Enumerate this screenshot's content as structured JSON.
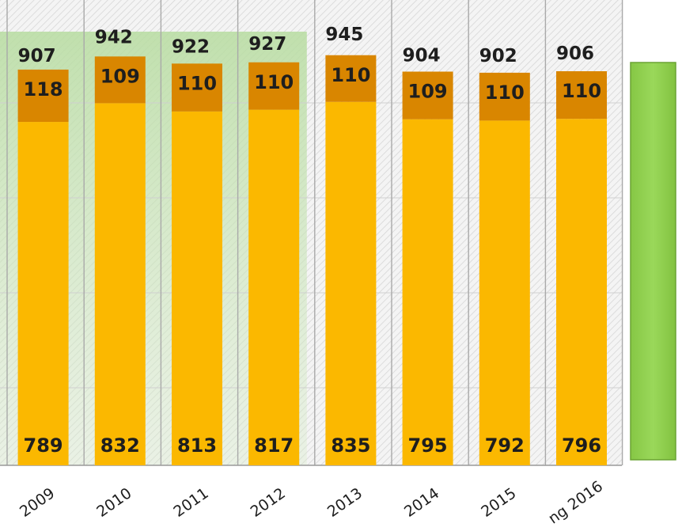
{
  "chart_data": {
    "type": "bar",
    "stacked": true,
    "categories": [
      "2009",
      "2010",
      "2011",
      "2012",
      "2013",
      "2014",
      "2015",
      "2016"
    ],
    "category_labels": [
      "2009",
      "2010",
      "2011",
      "2012",
      "2013",
      "2014",
      "2015",
      "ng 2016"
    ],
    "series": [
      {
        "values": [
          789,
          832,
          813,
          817,
          835,
          795,
          792,
          796
        ],
        "color": "#fbb800"
      },
      {
        "values": [
          118,
          109,
          110,
          110,
          110,
          109,
          110,
          110
        ],
        "color": "#d98600"
      }
    ],
    "totals": [
      907,
      942,
      922,
      927,
      945,
      904,
      902,
      906
    ],
    "grid": true,
    "highlight_band": {
      "from": "2009",
      "to": "2012",
      "color": "#c8e6b4"
    },
    "legend_swatch_color": "#92d050",
    "background_pattern": "diagonal-hatch"
  }
}
